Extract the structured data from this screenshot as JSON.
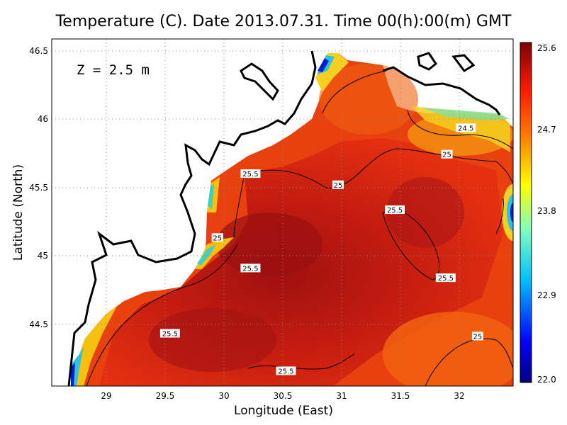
{
  "title": "Temperature (C). Date 2013.07.31. Time 00(h):00(m) GMT",
  "annotation": "Z  =  2.5  m",
  "axes": {
    "xlabel": "Longitude (East)",
    "ylabel": "Latitude (North)",
    "x_ticks": [
      "29",
      "29.5",
      "30",
      "30.5",
      "31",
      "31.5",
      "32"
    ],
    "y_ticks": [
      "46.5",
      "46",
      "45.5",
      "45",
      "44.5"
    ],
    "xlim": [
      28.55,
      32.45
    ],
    "ylim": [
      44.05,
      46.55
    ]
  },
  "colorbar": {
    "ticks": [
      "25.6",
      "24.7",
      "23.8",
      "22.9",
      "22.0"
    ],
    "min": 22.0,
    "max": 25.6
  },
  "contour_labels": [
    {
      "text": "25.5",
      "lon": 30.23,
      "lat": 45.58
    },
    {
      "text": "25",
      "lon": 29.95,
      "lat": 45.12
    },
    {
      "text": "25.5",
      "lon": 30.23,
      "lat": 44.9
    },
    {
      "text": "25",
      "lon": 30.97,
      "lat": 45.5
    },
    {
      "text": "25",
      "lon": 31.89,
      "lat": 45.72
    },
    {
      "text": "24.5",
      "lon": 32.05,
      "lat": 45.91
    },
    {
      "text": "25.5",
      "lon": 31.45,
      "lat": 45.32
    },
    {
      "text": "25.5",
      "lon": 31.88,
      "lat": 44.83
    },
    {
      "text": "25.5",
      "lon": 29.55,
      "lat": 44.43
    },
    {
      "text": "25",
      "lon": 32.15,
      "lat": 44.41
    },
    {
      "text": "25.5",
      "lon": 30.53,
      "lat": 44.16
    }
  ],
  "colors": {
    "scale": [
      "#00007f",
      "#0000ff",
      "#00bfff",
      "#7fffbf",
      "#ffff00",
      "#ff7f00",
      "#ff0000",
      "#7f0000"
    ]
  }
}
